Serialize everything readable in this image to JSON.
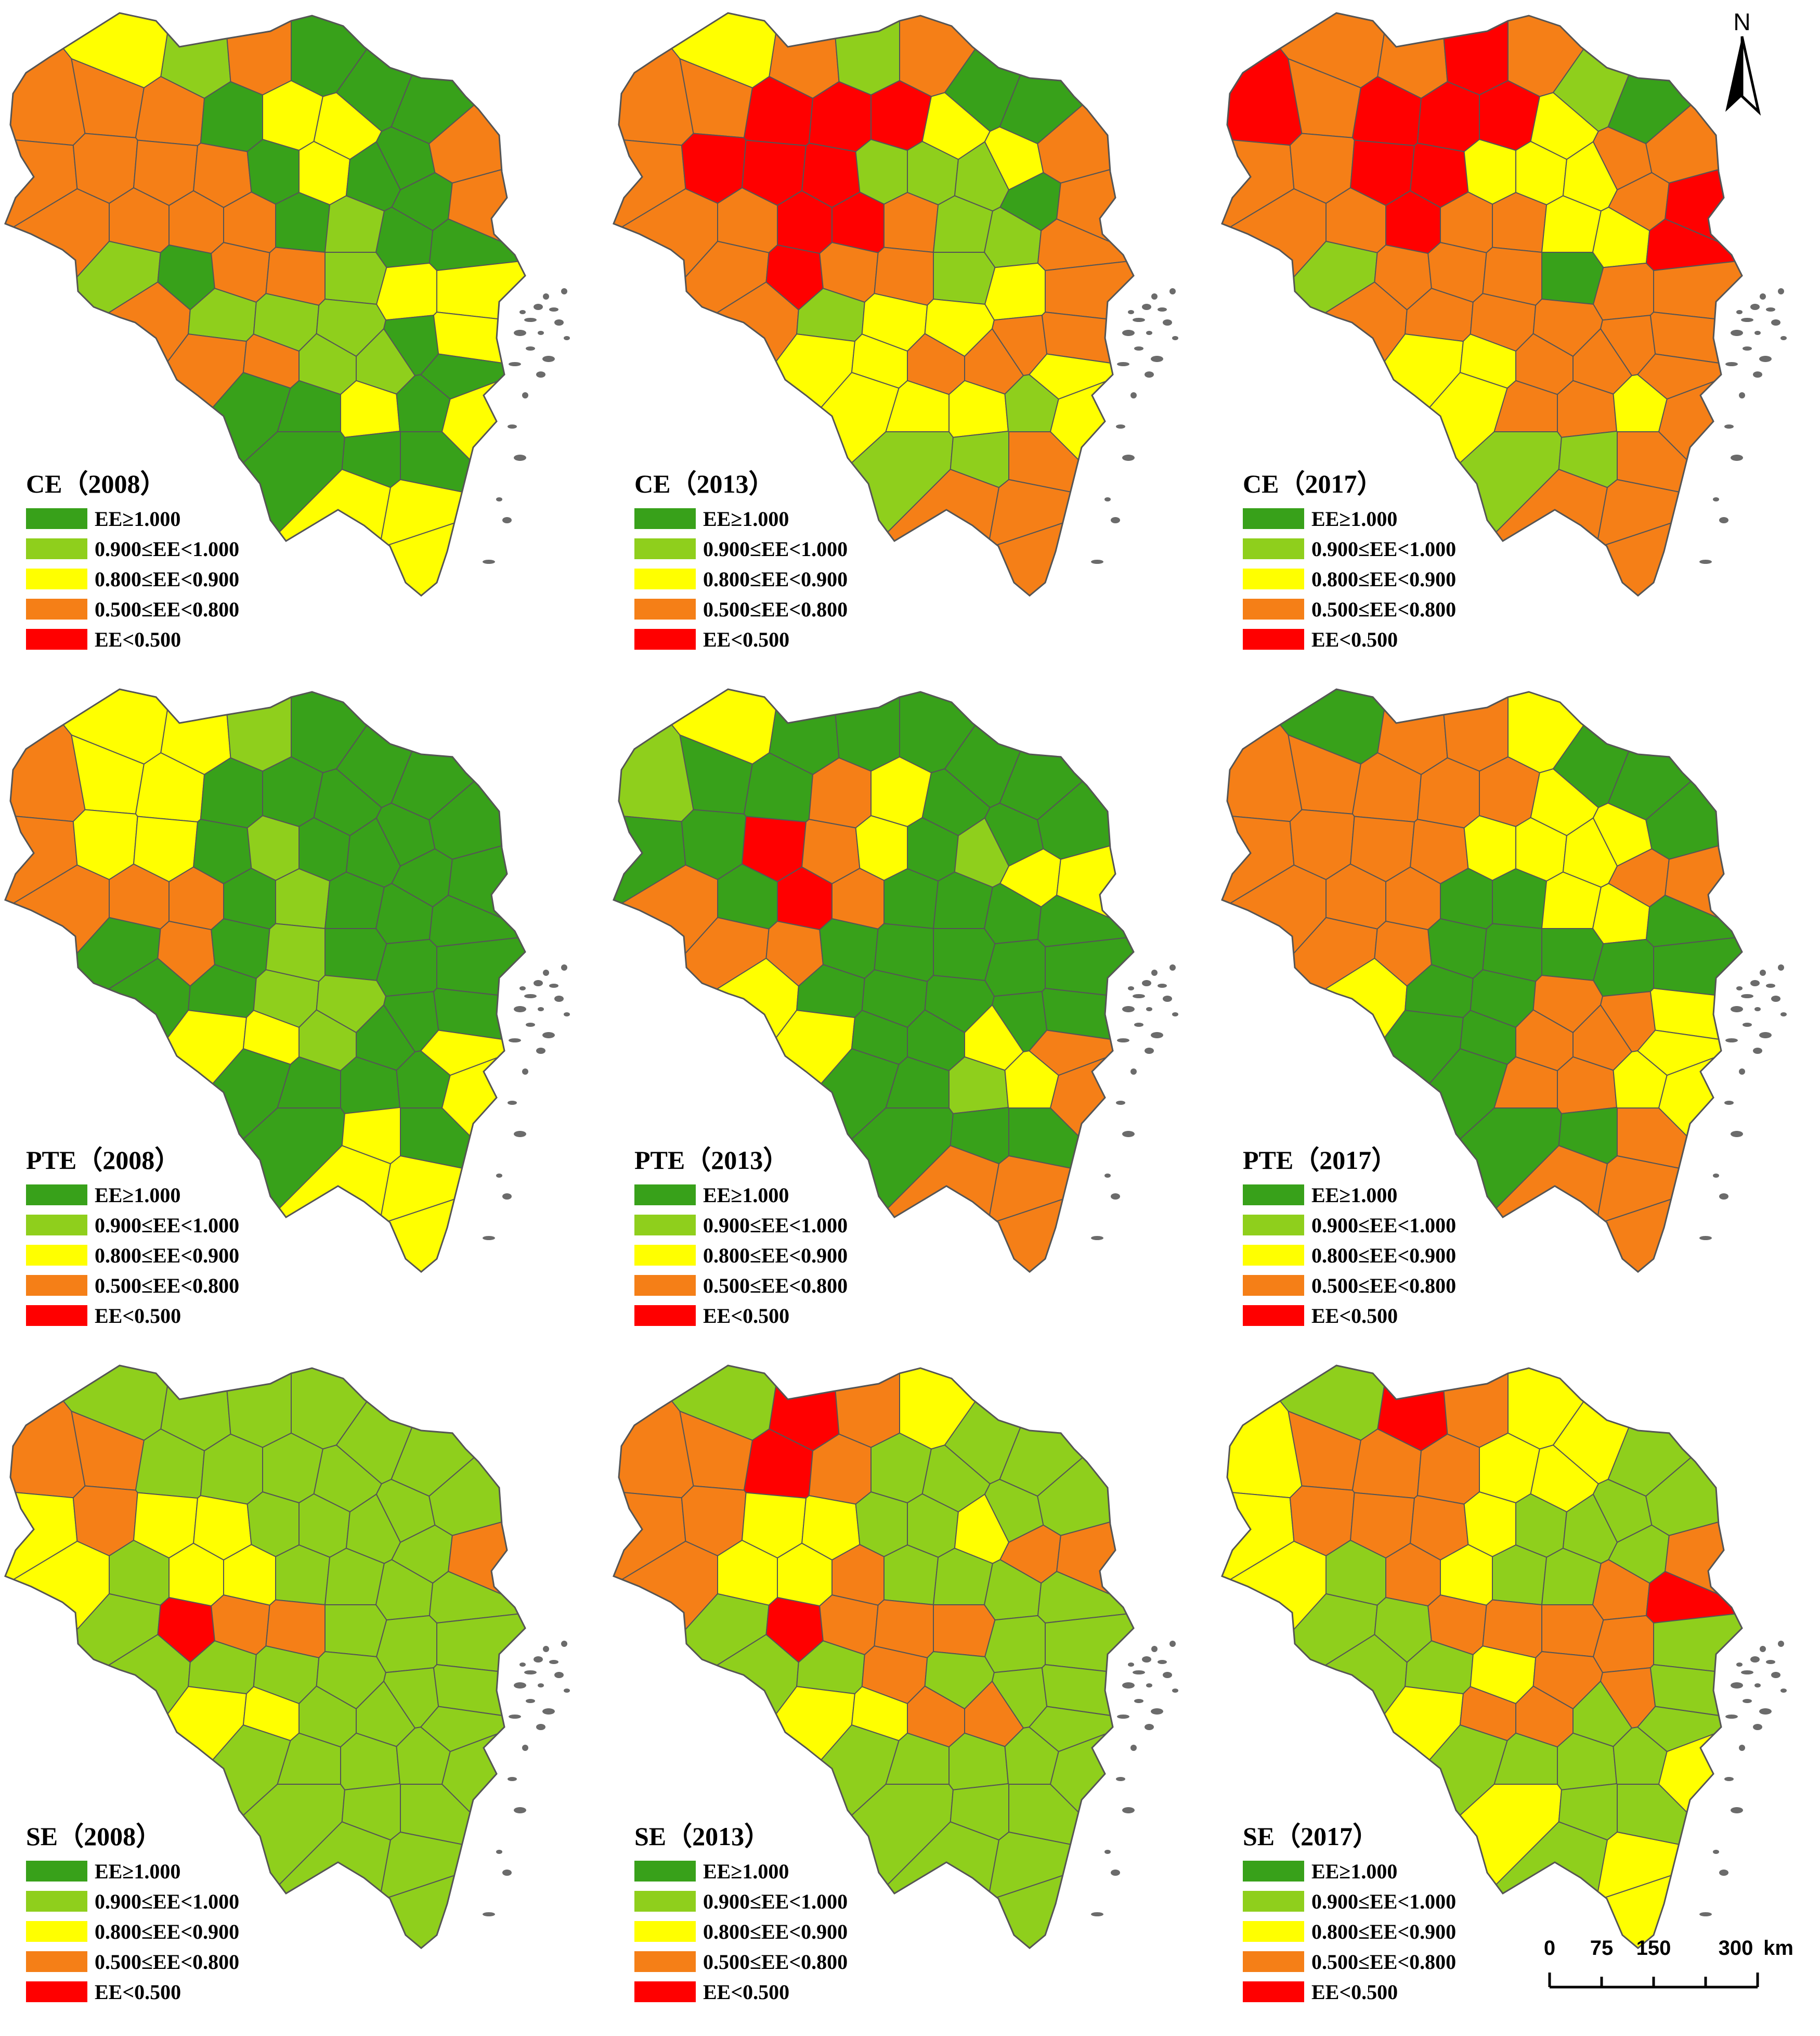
{
  "legend": {
    "classes": [
      {
        "label": "EE≥1.000",
        "color": "#38A11A"
      },
      {
        "label": "0.900≤EE<1.000",
        "color": "#8FCF1C"
      },
      {
        "label": "0.800≤EE<0.900",
        "color": "#FFFF00"
      },
      {
        "label": "0.500≤EE<0.800",
        "color": "#F57F17"
      },
      {
        "label": "EE<0.500",
        "color": "#FF0000"
      }
    ]
  },
  "panels": [
    {
      "title": "CE（2008）"
    },
    {
      "title": "CE（2013）"
    },
    {
      "title": "CE（2017）"
    },
    {
      "title": "PTE（2008）"
    },
    {
      "title": "PTE（2013）"
    },
    {
      "title": "PTE（2017）"
    },
    {
      "title": "SE（2008）"
    },
    {
      "title": "SE（2013）"
    },
    {
      "title": "SE（2017）"
    }
  ],
  "north_arrow": {
    "label": "N"
  },
  "scale_bar": {
    "ticks": [
      "0",
      "75",
      "150",
      "300"
    ],
    "unit": "km"
  },
  "colors": {
    "border": "#555555",
    "island": "#6b6b6b",
    "background": "#ffffff"
  },
  "icons": {
    "north": "north-arrow-icon",
    "scale": "scale-bar"
  }
}
